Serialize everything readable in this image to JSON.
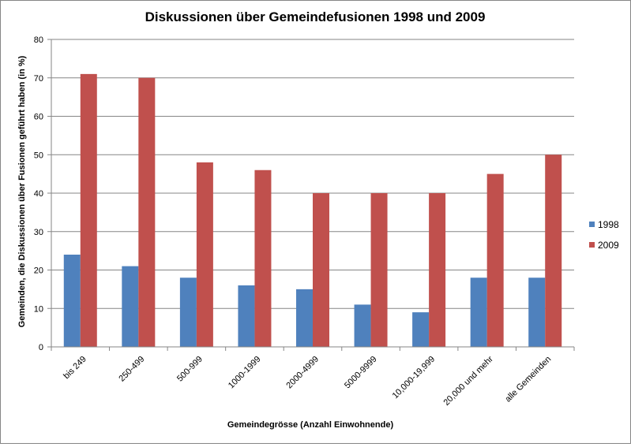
{
  "chart_data": {
    "type": "bar",
    "title": "Diskussionen über Gemeindefusionen 1998 und 2009",
    "xlabel": "Gemeindegrösse (Anzahl Einwohnende)",
    "ylabel": "Gemeinden, die Diskussionen  über Fusionen  geführt haben  (in %)",
    "categories": [
      "bis 249",
      "250-499",
      "500-999",
      "1000-1999",
      "2000-4999",
      "5000-9999",
      "10,000-19,999",
      "20,000 und mehr",
      "alle Gemeinden"
    ],
    "series": [
      {
        "name": "1998",
        "color": "#4F81BD",
        "values": [
          24,
          21,
          18,
          16,
          15,
          11,
          9,
          18,
          18
        ]
      },
      {
        "name": "2009",
        "color": "#C0504D",
        "values": [
          71,
          70,
          48,
          46,
          40,
          40,
          40,
          45,
          50
        ]
      }
    ],
    "ylim": [
      0,
      80
    ],
    "yticks": [
      "0",
      "10",
      "20",
      "30",
      "40",
      "50",
      "60",
      "70",
      "80"
    ],
    "grid": true,
    "legend_position": "right"
  }
}
